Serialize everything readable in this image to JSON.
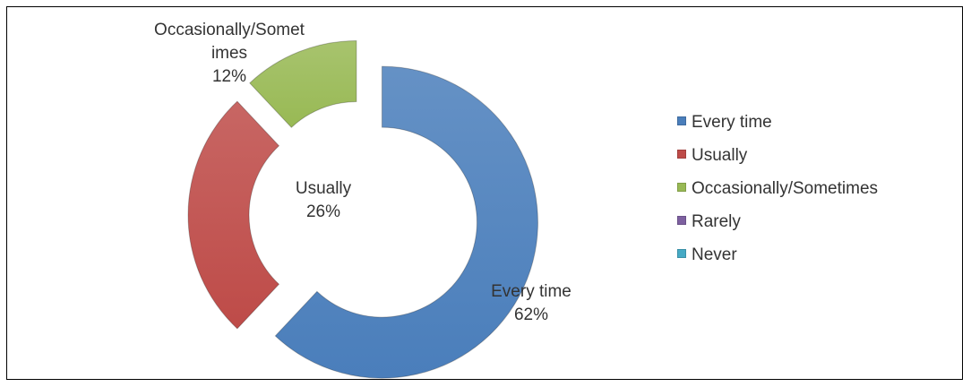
{
  "chart_data": {
    "type": "pie",
    "variant": "doughnut, exploded",
    "title": "",
    "slices": [
      {
        "name": "Every time",
        "value": 62,
        "percent_label": "62%",
        "color": "#4a7ebb",
        "label_lines": [
          "Every time",
          "62%"
        ]
      },
      {
        "name": "Usually",
        "value": 26,
        "percent_label": "26%",
        "color": "#be4b48",
        "label_lines": [
          "Usually",
          "26%"
        ]
      },
      {
        "name": "Occasionally/Sometimes",
        "value": 12,
        "percent_label": "12%",
        "color": "#98b954",
        "label_lines": [
          "Occasionally/Somet",
          "imes",
          "12%"
        ]
      },
      {
        "name": "Rarely",
        "value": 0,
        "percent_label": "0%",
        "color": "#7d60a0",
        "label_lines": []
      },
      {
        "name": "Never",
        "value": 0,
        "percent_label": "0%",
        "color": "#46aac5",
        "label_lines": []
      }
    ],
    "legend": {
      "position": "right",
      "items": [
        {
          "label": "Every time",
          "color": "#4a7ebb"
        },
        {
          "label": "Usually",
          "color": "#be4b48"
        },
        {
          "label": "Occasionally/Sometimes",
          "color": "#98b954"
        },
        {
          "label": "Rarely",
          "color": "#7d60a0"
        },
        {
          "label": "Never",
          "color": "#46aac5"
        }
      ]
    }
  }
}
